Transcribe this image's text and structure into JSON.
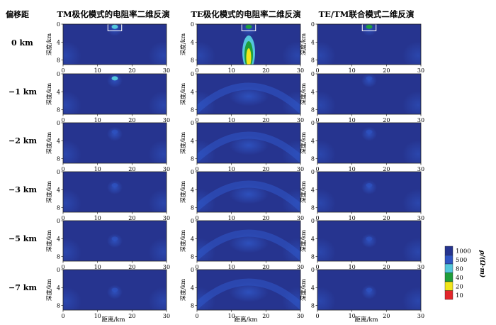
{
  "offset_header": "偏移距",
  "chart_data": {
    "type": "heatmap",
    "column_titles": [
      "TM极化模式的电阻率二维反演",
      "TE极化模式的电阻率二维反演",
      "TE/TM联合模式二维反演"
    ],
    "row_labels": [
      "0 km",
      "−1 km",
      "−2 km",
      "−3 km",
      "−5 km",
      "−7 km"
    ],
    "ylabel": "深度/km",
    "xlabel": "距离/km",
    "xticks": [
      "0",
      "10",
      "20",
      "30"
    ],
    "yticks": [
      "0",
      "4",
      "8"
    ],
    "xlim": [
      0,
      30
    ],
    "ylim": [
      0,
      9
    ],
    "colorbar": {
      "label": "ρ/(Ω·m)",
      "ticks": [
        "1000",
        "500",
        "80",
        "40",
        "20",
        "10"
      ],
      "colors": [
        "#26348f",
        "#2f55c4",
        "#54c6dc",
        "#1f9e3b",
        "#f2e61a",
        "#e3262b"
      ]
    },
    "background_resistivity": 1000,
    "anomaly_box": {
      "x": [
        13,
        17
      ],
      "depth": [
        0,
        1.5
      ]
    },
    "panels": [
      [
        {
          "row": 0,
          "col": 0,
          "box": true,
          "anomaly": {
            "x": 15,
            "depth": 0.6,
            "resistivity": 80
          }
        },
        {
          "row": 0,
          "col": 1,
          "box": true,
          "anomaly": {
            "x": 15,
            "depth": 0.6,
            "resistivity": 40
          },
          "plume": {
            "x": 15,
            "depth": [
              3,
              9
            ],
            "min_resistivity": 20
          }
        },
        {
          "row": 0,
          "col": 2,
          "box": true,
          "anomaly": {
            "x": 15,
            "depth": 0.6,
            "resistivity": 40
          }
        }
      ],
      [
        {
          "row": 1,
          "col": 0,
          "box": false,
          "anomaly": {
            "x": 15,
            "depth": 1.0,
            "resistivity": 80
          }
        },
        {
          "row": 1,
          "col": 1,
          "box": false,
          "arc": true
        },
        {
          "row": 1,
          "col": 2,
          "box": false,
          "anomaly": {
            "x": 15,
            "depth": 1.0,
            "resistivity": 500
          }
        }
      ],
      [
        {
          "row": 2,
          "col": 0,
          "box": false,
          "anomaly": {
            "x": 15,
            "depth": 2.0,
            "resistivity": 500
          }
        },
        {
          "row": 2,
          "col": 1,
          "box": false,
          "arc": true
        },
        {
          "row": 2,
          "col": 2,
          "box": false,
          "anomaly": {
            "x": 15,
            "depth": 2.0,
            "resistivity": 500
          }
        }
      ],
      [
        {
          "row": 3,
          "col": 0,
          "box": false,
          "anomaly": {
            "x": 15,
            "depth": 3.0,
            "resistivity": 500
          }
        },
        {
          "row": 3,
          "col": 1,
          "box": false,
          "arc": true
        },
        {
          "row": 3,
          "col": 2,
          "box": false,
          "anomaly": {
            "x": 15,
            "depth": 3.0,
            "resistivity": 500
          }
        }
      ],
      [
        {
          "row": 4,
          "col": 0,
          "box": false,
          "anomaly": {
            "x": 15,
            "depth": 4.0,
            "resistivity": 500
          }
        },
        {
          "row": 4,
          "col": 1,
          "box": false,
          "arc": true
        },
        {
          "row": 4,
          "col": 2,
          "box": false,
          "anomaly": {
            "x": 15,
            "depth": 4.0,
            "resistivity": 500
          }
        }
      ],
      [
        {
          "row": 5,
          "col": 0,
          "box": false,
          "anomaly": {
            "x": 15,
            "depth": 4.5,
            "resistivity": 500
          }
        },
        {
          "row": 5,
          "col": 1,
          "box": false,
          "arc": true
        },
        {
          "row": 5,
          "col": 2,
          "box": false,
          "anomaly": {
            "x": 15,
            "depth": 4.5,
            "resistivity": 500
          }
        }
      ]
    ]
  }
}
